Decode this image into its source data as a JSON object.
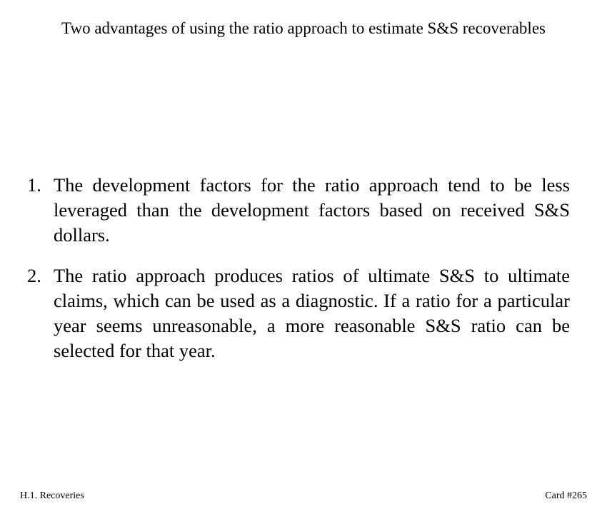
{
  "title": "Two advantages of using the ratio approach to estimate S&S recoverables",
  "items": [
    {
      "number": "1.",
      "text": "The development factors for the ratio approach tend to be less leveraged than the development factors based on received S&S dollars."
    },
    {
      "number": "2.",
      "text": "The ratio approach produces ratios of ultimate S&S to ultimate claims, which can be used as a diagnostic. If a ratio for a particular year seems unreasonable, a more reasonable S&S ratio can be selected for that year."
    }
  ],
  "footer": {
    "section": "H.1. Recoveries",
    "card": "Card #265"
  }
}
